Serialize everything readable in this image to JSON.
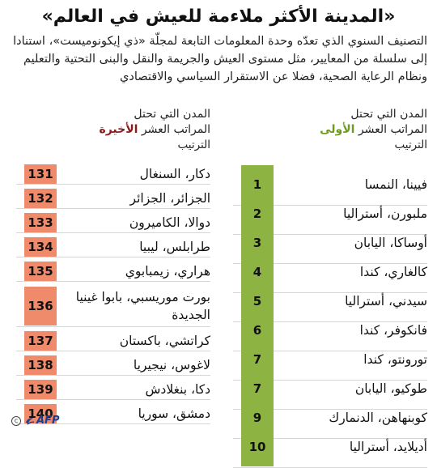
{
  "title": "«المدينة الأكثر ملاءمة للعيش في العالم»",
  "subtitle": "التصنيف السنوي الذي تعدّه وحدة المعلومات التابعة لمجلّة «ذي إيكونوميست»، استنادا إلى سلسلة من المعايير، مثل مستوى العيش والجريمة والنقل والبنى التحتية والتعليم ونظام الرعاية الصحية، فضلا عن الاستقرار السياسي والاقتصادي",
  "top": {
    "head_line1": "المدن التي تحتل",
    "head_line2_prefix": "المراتب العشر ",
    "head_line2_highlight": "الأولى",
    "rank_label": "الترتيب",
    "accent_color": "#8db443",
    "items": [
      {
        "rank": "1",
        "city": "فيينا، النمسا"
      },
      {
        "rank": "2",
        "city": "ملبورن، أستراليا"
      },
      {
        "rank": "3",
        "city": "أوساكا، اليابان"
      },
      {
        "rank": "4",
        "city": "كالغاري، كندا"
      },
      {
        "rank": "5",
        "city": "سيدني، أستراليا"
      },
      {
        "rank": "6",
        "city": "فانكوفر، كندا"
      },
      {
        "rank": "7",
        "city": "تورونتو، كندا"
      },
      {
        "rank": "7",
        "city": "طوكيو، اليابان"
      },
      {
        "rank": "9",
        "city": "كوبنهاهن، الدنمارك"
      },
      {
        "rank": "10",
        "city": "أديلايد، أستراليا"
      }
    ]
  },
  "bottom": {
    "head_line1": "المدن التي تحتل",
    "head_line2_prefix": "المراتب العشر ",
    "head_line2_highlight": "الأخيرة",
    "rank_label": "الترتيب",
    "accent_color": "#ef8a6a",
    "items": [
      {
        "rank": "131",
        "city": "دكار، السنغال"
      },
      {
        "rank": "132",
        "city": "الجزائر، الجزائر"
      },
      {
        "rank": "133",
        "city": "دوالا، الكاميرون"
      },
      {
        "rank": "134",
        "city": "طرابلس، ليبيا"
      },
      {
        "rank": "135",
        "city": "هراري، زيمبابوي"
      },
      {
        "rank": "136",
        "city": "بورت موريسبي، بابوا غينيا الجديدة"
      },
      {
        "rank": "137",
        "city": "كراتشي، باكستان"
      },
      {
        "rank": "138",
        "city": "لاغوس، نيجيريا"
      },
      {
        "rank": "139",
        "city": "دكا، بنغلادش"
      },
      {
        "rank": "140",
        "city": "دمشق، سوريا"
      }
    ]
  },
  "credit": {
    "copyright_symbol": "c",
    "agency": "AFP",
    "logo_icon": "afp-logo-icon"
  }
}
